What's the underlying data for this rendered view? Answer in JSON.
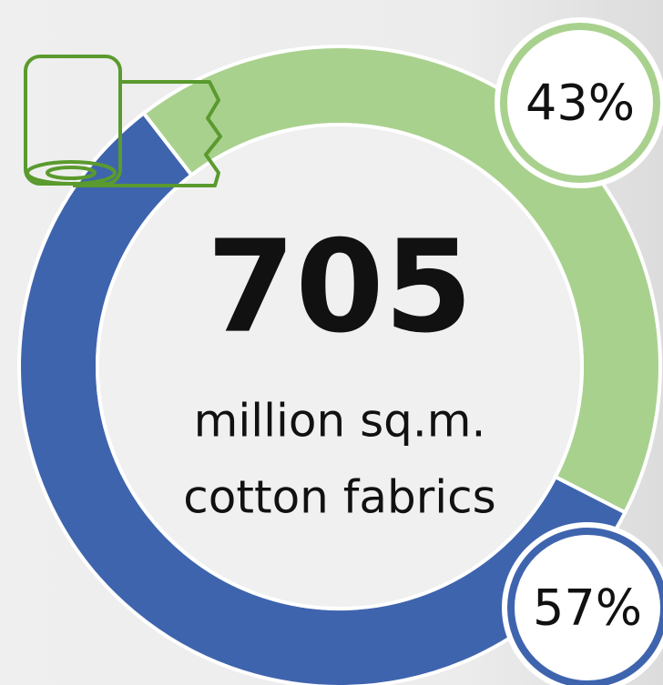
{
  "chart_data": {
    "type": "pie",
    "donut": true,
    "values": [
      43,
      57
    ],
    "value_labels": [
      "43%",
      "57%"
    ],
    "colors": [
      "#a9d18e",
      "#3f64ae"
    ],
    "annotations": [
      "705",
      "million sq.m.",
      "cotton fabrics"
    ]
  }
}
